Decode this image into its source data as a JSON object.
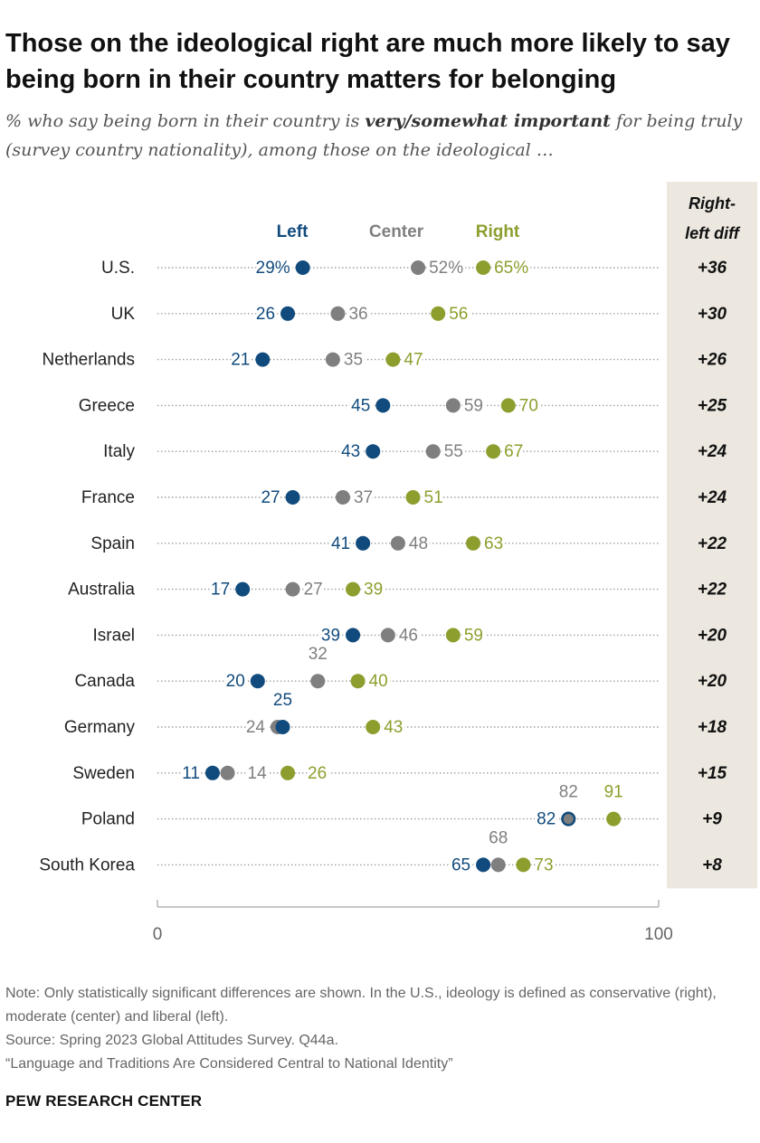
{
  "title": "Those on the ideological right are much more likely to say being born in their country matters for belonging",
  "subtitle": {
    "before": "% who say being born in their country is ",
    "emph": "very/somewhat important",
    "after": " for being truly (survey country nationality), among those on the ideological …"
  },
  "colors": {
    "left": "#114b7d",
    "center": "#7f7f7f",
    "right": "#8e9e2e",
    "diff_bg": "#ece8e0"
  },
  "chart_data": {
    "type": "dot",
    "series": [
      {
        "key": "left",
        "name": "Left"
      },
      {
        "key": "center",
        "name": "Center"
      },
      {
        "key": "right",
        "name": "Right"
      }
    ],
    "diff_header": [
      "Right-",
      "left diff"
    ],
    "x_range": [
      0,
      100
    ],
    "x_ticks": [
      "0",
      "100"
    ],
    "rows": [
      {
        "country": "U.S.",
        "left": 29,
        "center": 52,
        "right": 65,
        "left_label": "29%",
        "center_label": "52%",
        "right_label": "65%",
        "diff": "+36"
      },
      {
        "country": "UK",
        "left": 26,
        "center": 36,
        "right": 56,
        "left_label": "26",
        "center_label": "36",
        "right_label": "56",
        "diff": "+30"
      },
      {
        "country": "Netherlands",
        "left": 21,
        "center": 35,
        "right": 47,
        "left_label": "21",
        "center_label": "35",
        "right_label": "47",
        "diff": "+26"
      },
      {
        "country": "Greece",
        "left": 45,
        "center": 59,
        "right": 70,
        "left_label": "45",
        "center_label": "59",
        "right_label": "70",
        "diff": "+25"
      },
      {
        "country": "Italy",
        "left": 43,
        "center": 55,
        "right": 67,
        "left_label": "43",
        "center_label": "55",
        "right_label": "67",
        "diff": "+24"
      },
      {
        "country": "France",
        "left": 27,
        "center": 37,
        "right": 51,
        "left_label": "27",
        "center_label": "37",
        "right_label": "51",
        "diff": "+24"
      },
      {
        "country": "Spain",
        "left": 41,
        "center": 48,
        "right": 63,
        "left_label": "41",
        "center_label": "48",
        "right_label": "63",
        "diff": "+22"
      },
      {
        "country": "Australia",
        "left": 17,
        "center": 27,
        "right": 39,
        "left_label": "17",
        "center_label": "27",
        "right_label": "39",
        "diff": "+22"
      },
      {
        "country": "Israel",
        "left": 39,
        "center": 46,
        "right": 59,
        "left_label": "39",
        "center_label": "46",
        "right_label": "59",
        "diff": "+20"
      },
      {
        "country": "Canada",
        "left": 20,
        "center": 32,
        "right": 40,
        "left_label": "20",
        "center_label": "32",
        "right_label": "40",
        "diff": "+20"
      },
      {
        "country": "Germany",
        "left": 25,
        "center": 24,
        "right": 43,
        "left_label": "25",
        "center_label": "24",
        "right_label": "43",
        "diff": "+18"
      },
      {
        "country": "Sweden",
        "left": 11,
        "center": 14,
        "right": 26,
        "left_label": "11",
        "center_label": "14",
        "right_label": "26",
        "diff": "+15"
      },
      {
        "country": "Poland",
        "left": 82,
        "center": 82,
        "right": 91,
        "left_label": "82",
        "center_label": "82",
        "right_label": "91",
        "diff": "+9"
      },
      {
        "country": "South Korea",
        "left": 65,
        "center": 68,
        "right": 73,
        "left_label": "65",
        "center_label": "68",
        "right_label": "73",
        "diff": "+8"
      }
    ]
  },
  "notes": [
    "Note: Only statistically significant differences are shown. In the U.S., ideology is defined as conservative (right), moderate (center) and liberal (left).",
    "Source: Spring 2023 Global Attitudes Survey. Q44a.",
    "“Language and Traditions Are Considered Central to National Identity”"
  ],
  "brand": "PEW RESEARCH CENTER"
}
